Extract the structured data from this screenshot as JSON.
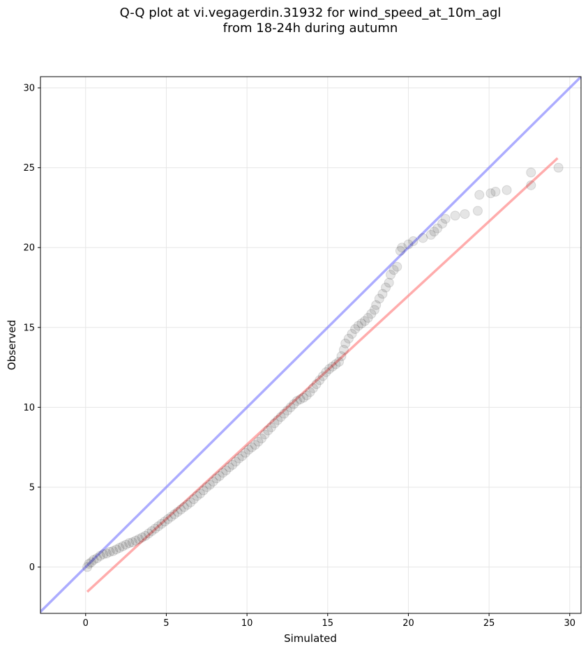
{
  "chart_data": {
    "type": "scatter",
    "title_line1": "Q-Q plot at vi.vegagerdin.31932 for wind_speed_at_10m_agl",
    "title_line2": "from 18-24h during autumn",
    "xlabel": "Simulated",
    "ylabel": "Observed",
    "xlim": [
      -2.8,
      30.7
    ],
    "ylim": [
      -2.9,
      30.7
    ],
    "xticks": [
      0,
      5,
      10,
      15,
      20,
      25,
      30
    ],
    "yticks": [
      0,
      5,
      10,
      15,
      20,
      25,
      30
    ],
    "grid": true,
    "identity_line": {
      "color": "#7f7fff",
      "from": [
        -2.8,
        -2.8
      ],
      "to": [
        30.7,
        30.7
      ]
    },
    "fit_line": {
      "color": "#ff7f7f",
      "from": [
        0.1,
        -1.55
      ],
      "to": [
        29.25,
        25.6
      ]
    },
    "point_color": "#000000",
    "points": [
      [
        0.1,
        0.0
      ],
      [
        0.2,
        0.2
      ],
      [
        0.35,
        0.3
      ],
      [
        0.5,
        0.45
      ],
      [
        0.7,
        0.55
      ],
      [
        0.9,
        0.7
      ],
      [
        1.1,
        0.8
      ],
      [
        1.3,
        0.85
      ],
      [
        1.5,
        0.95
      ],
      [
        1.7,
        1.0
      ],
      [
        1.9,
        1.1
      ],
      [
        2.1,
        1.2
      ],
      [
        2.3,
        1.3
      ],
      [
        2.5,
        1.4
      ],
      [
        2.7,
        1.5
      ],
      [
        2.9,
        1.55
      ],
      [
        3.1,
        1.65
      ],
      [
        3.3,
        1.75
      ],
      [
        3.5,
        1.85
      ],
      [
        3.7,
        1.95
      ],
      [
        3.9,
        2.1
      ],
      [
        4.1,
        2.25
      ],
      [
        4.3,
        2.4
      ],
      [
        4.5,
        2.55
      ],
      [
        4.7,
        2.7
      ],
      [
        4.9,
        2.85
      ],
      [
        5.1,
        3.0
      ],
      [
        5.3,
        3.15
      ],
      [
        5.5,
        3.3
      ],
      [
        5.7,
        3.45
      ],
      [
        5.9,
        3.6
      ],
      [
        6.1,
        3.75
      ],
      [
        6.3,
        3.9
      ],
      [
        6.5,
        4.05
      ],
      [
        6.7,
        4.25
      ],
      [
        6.9,
        4.45
      ],
      [
        7.1,
        4.6
      ],
      [
        7.3,
        4.8
      ],
      [
        7.5,
        5.0
      ],
      [
        7.7,
        5.15
      ],
      [
        7.9,
        5.35
      ],
      [
        8.1,
        5.55
      ],
      [
        8.3,
        5.7
      ],
      [
        8.5,
        5.9
      ],
      [
        8.7,
        6.05
      ],
      [
        8.9,
        6.25
      ],
      [
        9.1,
        6.4
      ],
      [
        9.3,
        6.6
      ],
      [
        9.5,
        6.8
      ],
      [
        9.7,
        6.95
      ],
      [
        9.9,
        7.15
      ],
      [
        10.1,
        7.35
      ],
      [
        10.3,
        7.5
      ],
      [
        10.5,
        7.65
      ],
      [
        10.7,
        7.85
      ],
      [
        10.9,
        8.05
      ],
      [
        11.1,
        8.3
      ],
      [
        11.3,
        8.55
      ],
      [
        11.5,
        8.75
      ],
      [
        11.7,
        9.0
      ],
      [
        11.9,
        9.2
      ],
      [
        12.1,
        9.4
      ],
      [
        12.3,
        9.6
      ],
      [
        12.5,
        9.8
      ],
      [
        12.7,
        10.0
      ],
      [
        12.9,
        10.2
      ],
      [
        13.1,
        10.4
      ],
      [
        13.3,
        10.5
      ],
      [
        13.5,
        10.6
      ],
      [
        13.7,
        10.75
      ],
      [
        13.9,
        10.95
      ],
      [
        14.1,
        11.2
      ],
      [
        14.3,
        11.45
      ],
      [
        14.5,
        11.7
      ],
      [
        14.7,
        11.95
      ],
      [
        14.9,
        12.2
      ],
      [
        15.1,
        12.4
      ],
      [
        15.3,
        12.55
      ],
      [
        15.5,
        12.7
      ],
      [
        15.7,
        12.85
      ],
      [
        15.85,
        13.2
      ],
      [
        16.0,
        13.6
      ],
      [
        16.1,
        14.0
      ],
      [
        16.3,
        14.3
      ],
      [
        16.5,
        14.6
      ],
      [
        16.7,
        14.9
      ],
      [
        16.9,
        15.1
      ],
      [
        17.1,
        15.25
      ],
      [
        17.3,
        15.4
      ],
      [
        17.5,
        15.6
      ],
      [
        17.7,
        15.85
      ],
      [
        17.9,
        16.1
      ],
      [
        18.0,
        16.4
      ],
      [
        18.2,
        16.8
      ],
      [
        18.4,
        17.1
      ],
      [
        18.6,
        17.5
      ],
      [
        18.8,
        17.8
      ],
      [
        18.9,
        18.3
      ],
      [
        19.1,
        18.6
      ],
      [
        19.3,
        18.8
      ],
      [
        19.5,
        19.8
      ],
      [
        19.6,
        20.0
      ],
      [
        20.0,
        20.2
      ],
      [
        20.3,
        20.4
      ],
      [
        20.9,
        20.6
      ],
      [
        21.4,
        20.8
      ],
      [
        21.6,
        21.0
      ],
      [
        21.8,
        21.2
      ],
      [
        22.1,
        21.5
      ],
      [
        22.3,
        21.8
      ],
      [
        22.9,
        22.0
      ],
      [
        23.5,
        22.1
      ],
      [
        24.3,
        22.3
      ],
      [
        24.4,
        23.3
      ],
      [
        25.1,
        23.4
      ],
      [
        25.4,
        23.5
      ],
      [
        26.1,
        23.6
      ],
      [
        27.6,
        23.9
      ],
      [
        27.6,
        24.7
      ],
      [
        29.3,
        25.0
      ]
    ]
  }
}
